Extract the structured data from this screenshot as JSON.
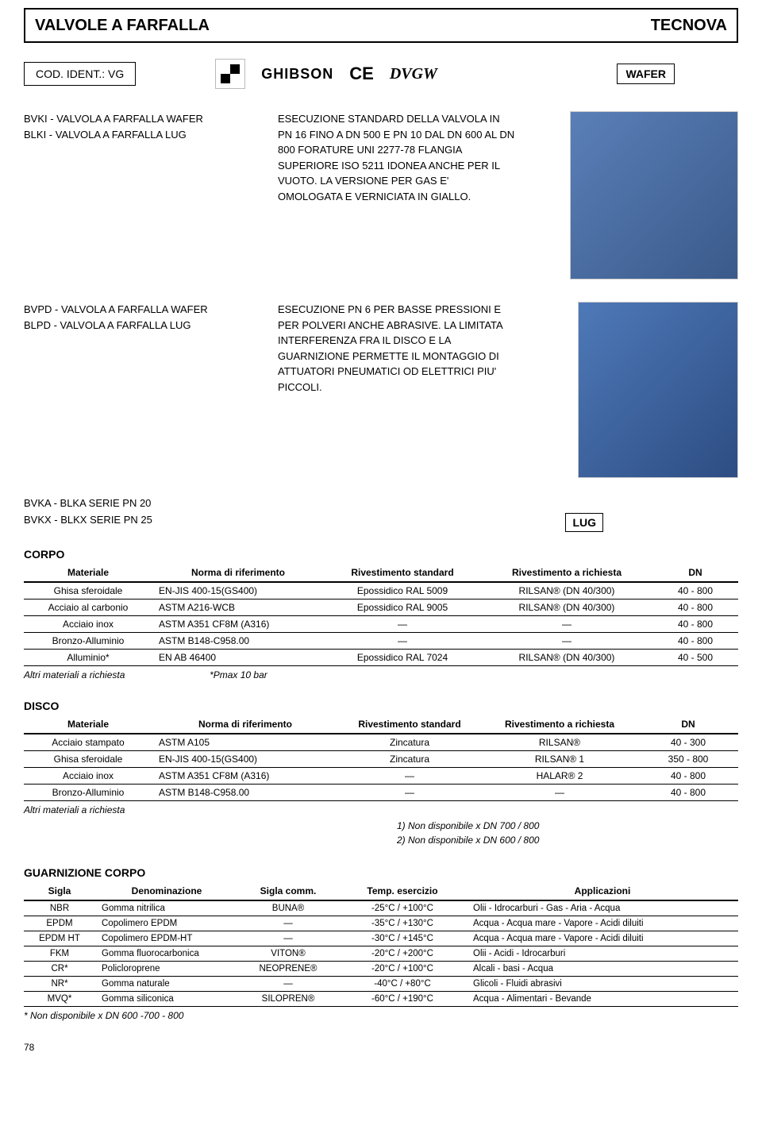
{
  "header": {
    "left": "VALVOLE A FARFALLA",
    "right": "TECNOVA"
  },
  "cod_ident": "COD. IDENT.: VG",
  "ghibson": "GHIBSON",
  "ce": "CE",
  "dvgw": "DVGW",
  "wafer_label": "WAFER",
  "lug_label": "LUG",
  "block1": {
    "left": "BVKI  -  VALVOLA A FARFALLA WAFER\nBLKI  -  VALVOLA A FARFALLA LUG",
    "mid": "ESECUZIONE STANDARD DELLA VALVOLA IN PN 16 FINO A DN 500 E PN 10 DAL DN 600 AL DN 800 FORATURE UNI 2277-78 FLANGIA SUPERIORE ISO 5211 IDONEA ANCHE PER IL VUOTO. LA VERSIONE PER GAS E' OMOLOGATA E VERNICIATA IN GIALLO."
  },
  "block2": {
    "left": "BVPD - VALVOLA A FARFALLA WAFER\nBLPD - VALVOLA A FARFALLA LUG",
    "mid": "ESECUZIONE PN 6 PER BASSE PRESSIONI E PER POLVERI ANCHE ABRASIVE. LA LIMITATA INTERFERENZA FRA IL DISCO E LA GUARNIZIONE PERMETTE IL MONTAGGIO DI ATTUATORI PNEUMATICI OD ELETTRICI PIU' PICCOLI."
  },
  "series": "BVKA - BLKA  SERIE PN 20\nBVKX - BLKX  SERIE PN 25",
  "corpo": {
    "title": "CORPO",
    "headers": [
      "Materiale",
      "Norma di riferimento",
      "Rivestimento standard",
      "Rivestimento a richiesta",
      "DN"
    ],
    "rows": [
      [
        "Ghisa sferoidale",
        "EN-JIS 400-15(GS400)",
        "Epossidico RAL 5009",
        "RILSAN® (DN 40/300)",
        "40 - 800"
      ],
      [
        "Acciaio al carbonio",
        "ASTM A216-WCB",
        "Epossidico RAL 9005",
        "RILSAN® (DN 40/300)",
        "40 - 800"
      ],
      [
        "Acciaio inox",
        "ASTM A351 CF8M (A316)",
        "—",
        "—",
        "40 - 800"
      ],
      [
        "Bronzo-Alluminio",
        "ASTM B148-C958.00",
        "—",
        "—",
        "40 - 800"
      ],
      [
        "Alluminio*",
        "EN AB 46400",
        "Epossidico RAL 7024",
        "RILSAN® (DN 40/300)",
        "40 - 500"
      ]
    ],
    "foot1": "Altri materiali a richiesta",
    "foot2": "*Pmax 10 bar"
  },
  "disco": {
    "title": "DISCO",
    "headers": [
      "Materiale",
      "Norma di riferimento",
      "Rivestimento standard",
      "Rivestimento a richiesta",
      "DN"
    ],
    "rows": [
      [
        "Acciaio stampato",
        "ASTM A105",
        "Zincatura",
        "RILSAN®",
        "40 - 300"
      ],
      [
        "Ghisa sferoidale",
        "EN-JIS 400-15(GS400)",
        "Zincatura",
        "RILSAN® 1",
        "350 - 800"
      ],
      [
        "Acciaio inox",
        "ASTM A351 CF8M (A316)",
        "—",
        "HALAR® 2",
        "40 - 800"
      ],
      [
        "Bronzo-Alluminio",
        "ASTM B148-C958.00",
        "—",
        "—",
        "40 - 800"
      ]
    ],
    "foot1": "Altri materiali a richiesta",
    "note1": "1) Non disponibile x DN 700 / 800",
    "note2": "2) Non disponibile x DN 600 / 800"
  },
  "guarnizione": {
    "title": "GUARNIZIONE CORPO",
    "headers": [
      "Sigla",
      "Denominazione",
      "Sigla comm.",
      "Temp. esercizio",
      "Applicazioni"
    ],
    "rows": [
      [
        "NBR",
        "Gomma nitrilica",
        "BUNA®",
        "-25°C / +100°C",
        "Olii - Idrocarburi - Gas - Aria - Acqua"
      ],
      [
        "EPDM",
        "Copolimero EPDM",
        "—",
        "-35°C / +130°C",
        "Acqua - Acqua mare - Vapore - Acidi diluiti"
      ],
      [
        "EPDM HT",
        "Copolimero EPDM-HT",
        "—",
        "-30°C / +145°C",
        "Acqua - Acqua mare - Vapore - Acidi diluiti"
      ],
      [
        "FKM",
        "Gomma fluorocarbonica",
        "VITON®",
        "-20°C / +200°C",
        "Olii - Acidi - Idrocarburi"
      ],
      [
        "CR*",
        "Policloroprene",
        "NEOPRENE®",
        "-20°C / +100°C",
        "Alcali - basi - Acqua"
      ],
      [
        "NR*",
        "Gomma naturale",
        "—",
        "-40°C / +80°C",
        "Glicoli - Fluidi abrasivi"
      ],
      [
        "MVQ*",
        "Gomma siliconica",
        "SILOPREN®",
        "-60°C / +190°C",
        "Acqua - Alimentari - Bevande"
      ]
    ],
    "foot": "* Non disponibile x DN 600 -700 - 800"
  },
  "page_num": "78"
}
